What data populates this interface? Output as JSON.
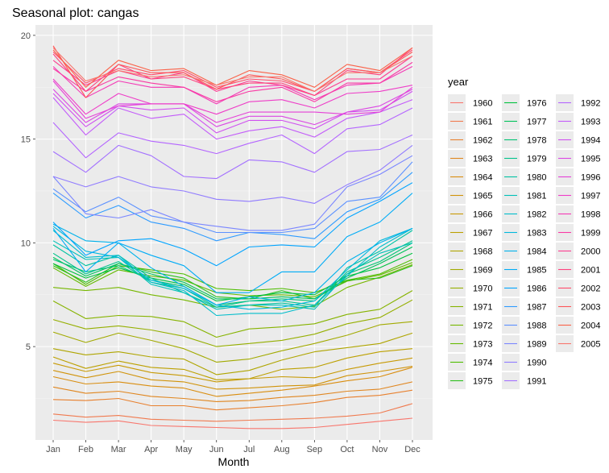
{
  "chart_data": {
    "type": "line",
    "title": "Seasonal plot: cangas",
    "xlabel": "Month",
    "ylabel": "",
    "categories": [
      "Jan",
      "Feb",
      "Mar",
      "Apr",
      "May",
      "Jun",
      "Jul",
      "Aug",
      "Sep",
      "Oct",
      "Nov",
      "Dec"
    ],
    "yticks": [
      5,
      10,
      15,
      20
    ],
    "ylim": [
      0.5,
      20.5
    ],
    "grid": true,
    "legend_title": "year",
    "legend_placement": "right",
    "background": "#ebebeb",
    "series": [
      {
        "name": "1960",
        "color": "#F8766D",
        "values": [
          1.45,
          1.35,
          1.42,
          1.2,
          1.15,
          1.1,
          1.05,
          1.05,
          1.1,
          1.25,
          1.4,
          1.55
        ]
      },
      {
        "name": "1961",
        "color": "#F07A4F",
        "values": [
          1.75,
          1.6,
          1.68,
          1.5,
          1.45,
          1.4,
          1.45,
          1.5,
          1.55,
          1.65,
          1.8,
          2.25
        ]
      },
      {
        "name": "1962",
        "color": "#E8802E",
        "values": [
          2.45,
          2.4,
          2.5,
          2.15,
          2.15,
          1.95,
          2.05,
          2.15,
          2.3,
          2.55,
          2.65,
          2.9
        ]
      },
      {
        "name": "1963",
        "color": "#E0861F",
        "values": [
          3.05,
          2.75,
          2.85,
          2.6,
          2.5,
          2.35,
          2.4,
          2.55,
          2.65,
          2.85,
          2.95,
          3.3
        ]
      },
      {
        "name": "1964",
        "color": "#D98D0F",
        "values": [
          3.55,
          3.2,
          3.3,
          3.1,
          3.0,
          2.6,
          2.75,
          2.9,
          3.1,
          3.35,
          3.55,
          4.0
        ]
      },
      {
        "name": "1965",
        "color": "#D0930A",
        "values": [
          3.85,
          3.5,
          3.8,
          3.4,
          3.3,
          2.95,
          3.0,
          3.1,
          3.15,
          3.6,
          3.8,
          4.05
        ]
      },
      {
        "name": "1966",
        "color": "#C79A05",
        "values": [
          4.2,
          3.8,
          4.1,
          3.75,
          3.6,
          3.3,
          3.45,
          3.55,
          3.5,
          3.9,
          4.2,
          4.45
        ]
      },
      {
        "name": "1967",
        "color": "#BCA000",
        "values": [
          4.5,
          3.95,
          4.3,
          4.0,
          3.9,
          3.4,
          3.45,
          3.9,
          4.0,
          4.45,
          4.75,
          4.9
        ]
      },
      {
        "name": "1968",
        "color": "#AFA500",
        "values": [
          4.9,
          4.6,
          4.75,
          4.5,
          4.4,
          3.65,
          3.85,
          4.35,
          4.75,
          4.95,
          5.15,
          5.65
        ]
      },
      {
        "name": "1969",
        "color": "#A2AA00",
        "values": [
          5.7,
          5.2,
          5.65,
          5.3,
          4.9,
          4.25,
          4.4,
          4.8,
          5.15,
          5.55,
          6.05,
          6.2
        ]
      },
      {
        "name": "1970",
        "color": "#95AF00",
        "values": [
          6.3,
          5.85,
          6.0,
          5.8,
          5.5,
          5.0,
          5.15,
          5.3,
          5.6,
          6.1,
          6.4,
          7.25
        ]
      },
      {
        "name": "1971",
        "color": "#86B300",
        "values": [
          7.2,
          6.35,
          6.5,
          6.45,
          6.2,
          5.45,
          5.85,
          5.95,
          6.1,
          6.55,
          6.8,
          7.7
        ]
      },
      {
        "name": "1972",
        "color": "#76B700",
        "values": [
          7.85,
          7.7,
          7.85,
          7.5,
          7.25,
          6.9,
          7.0,
          6.8,
          6.95,
          7.85,
          8.35,
          8.95
        ]
      },
      {
        "name": "1973",
        "color": "#64BA00",
        "values": [
          8.8,
          7.9,
          8.7,
          8.4,
          8.2,
          7.6,
          7.45,
          7.5,
          7.4,
          8.15,
          8.45,
          9.05
        ]
      },
      {
        "name": "1974",
        "color": "#4EBD00",
        "values": [
          9.0,
          8.0,
          8.9,
          8.7,
          8.5,
          7.8,
          7.7,
          7.8,
          7.6,
          8.2,
          8.5,
          9.2
        ]
      },
      {
        "name": "1975",
        "color": "#2BBF1C",
        "values": [
          8.9,
          8.1,
          9.0,
          8.6,
          8.3,
          7.4,
          7.3,
          7.7,
          7.3,
          8.2,
          8.3,
          8.9
        ]
      },
      {
        "name": "1976",
        "color": "#00C13E",
        "values": [
          9.0,
          8.3,
          8.8,
          8.3,
          8.0,
          7.2,
          7.4,
          7.6,
          7.5,
          8.4,
          8.8,
          9.5
        ]
      },
      {
        "name": "1977",
        "color": "#00C25A",
        "values": [
          9.3,
          8.4,
          9.0,
          8.5,
          8.1,
          7.3,
          7.3,
          7.4,
          7.3,
          8.3,
          9.0,
          9.8
        ]
      },
      {
        "name": "1978",
        "color": "#00C374",
        "values": [
          9.2,
          8.6,
          8.9,
          8.2,
          7.9,
          7.0,
          7.2,
          7.3,
          7.2,
          8.5,
          9.1,
          10.0
        ]
      },
      {
        "name": "1979",
        "color": "#00C38C",
        "values": [
          9.5,
          8.5,
          9.1,
          8.1,
          7.8,
          6.9,
          7.2,
          7.2,
          7.0,
          8.6,
          9.3,
          10.1
        ]
      },
      {
        "name": "1980",
        "color": "#00C2A2",
        "values": [
          9.9,
          8.9,
          9.4,
          8.3,
          7.6,
          6.9,
          7.0,
          7.1,
          6.9,
          8.8,
          9.6,
          10.6
        ]
      },
      {
        "name": "1981",
        "color": "#00C0B8",
        "values": [
          10.1,
          9.2,
          9.3,
          8.0,
          7.6,
          6.8,
          7.0,
          7.0,
          6.8,
          8.5,
          9.5,
          10.0
        ]
      },
      {
        "name": "1982",
        "color": "#00BDCB",
        "values": [
          10.6,
          9.3,
          9.4,
          8.1,
          7.7,
          6.5,
          6.6,
          6.6,
          7.0,
          8.4,
          9.8,
          10.7
        ]
      },
      {
        "name": "1983",
        "color": "#00B8DC",
        "values": [
          10.8,
          9.6,
          9.3,
          8.2,
          7.8,
          7.0,
          6.8,
          6.9,
          7.2,
          8.7,
          10.1,
          10.7
        ]
      },
      {
        "name": "1984",
        "color": "#00B2EB",
        "values": [
          10.9,
          10.1,
          10.0,
          8.8,
          7.9,
          7.0,
          7.4,
          7.2,
          7.6,
          9.1,
          10.0,
          10.7
        ]
      },
      {
        "name": "1985",
        "color": "#00ACF6",
        "values": [
          10.7,
          8.6,
          10.0,
          9.4,
          8.9,
          7.6,
          7.6,
          8.6,
          8.6,
          10.3,
          11.0,
          12.4
        ]
      },
      {
        "name": "1986",
        "color": "#00A4FF",
        "values": [
          11.0,
          9.4,
          10.1,
          10.2,
          9.7,
          8.9,
          9.8,
          9.9,
          9.8,
          11.2,
          12.0,
          12.9
        ]
      },
      {
        "name": "1987",
        "color": "#2E9BFF",
        "values": [
          12.4,
          11.2,
          11.8,
          11.0,
          10.7,
          10.1,
          10.5,
          10.4,
          10.2,
          11.5,
          12.1,
          13.4
        ]
      },
      {
        "name": "1988",
        "color": "#5C91FF",
        "values": [
          12.6,
          11.5,
          12.2,
          11.3,
          11.0,
          10.5,
          10.5,
          10.5,
          10.7,
          12.0,
          12.2,
          13.9
        ]
      },
      {
        "name": "1989",
        "color": "#7A86FF",
        "values": [
          13.2,
          11.4,
          11.2,
          11.6,
          11.0,
          10.8,
          10.6,
          10.6,
          10.9,
          12.7,
          13.3,
          14.2
        ]
      },
      {
        "name": "1990",
        "color": "#907BFF",
        "values": [
          13.2,
          12.7,
          13.2,
          12.7,
          12.5,
          12.1,
          12.0,
          12.2,
          11.9,
          12.8,
          13.5,
          14.7
        ]
      },
      {
        "name": "1991",
        "color": "#A370FF",
        "values": [
          14.4,
          13.4,
          14.7,
          14.2,
          13.2,
          13.1,
          14.0,
          13.9,
          13.4,
          14.4,
          14.5,
          15.2
        ]
      },
      {
        "name": "1992",
        "color": "#B465FF",
        "values": [
          15.8,
          14.1,
          15.3,
          14.9,
          14.7,
          14.3,
          14.8,
          15.2,
          14.3,
          15.5,
          15.7,
          16.5
        ]
      },
      {
        "name": "1993",
        "color": "#C35BFA",
        "values": [
          17.0,
          15.2,
          16.5,
          16.0,
          16.2,
          15.0,
          15.4,
          15.6,
          15.1,
          16.0,
          16.3,
          16.9
        ]
      },
      {
        "name": "1994",
        "color": "#D050F0",
        "values": [
          17.2,
          15.6,
          16.6,
          16.4,
          16.5,
          15.3,
          15.9,
          15.9,
          15.5,
          16.3,
          16.4,
          17.3
        ]
      },
      {
        "name": "1995",
        "color": "#DB47E4",
        "values": [
          17.4,
          15.8,
          16.7,
          16.7,
          16.7,
          15.6,
          16.1,
          16.1,
          15.7,
          16.3,
          16.6,
          17.4
        ]
      },
      {
        "name": "1996",
        "color": "#E541D7",
        "values": [
          17.8,
          16.0,
          16.6,
          16.7,
          16.7,
          15.8,
          16.3,
          16.3,
          16.3,
          16.2,
          16.3,
          17.5
        ]
      },
      {
        "name": "1997",
        "color": "#EE3DC8",
        "values": [
          17.9,
          16.2,
          17.2,
          16.7,
          16.7,
          16.2,
          16.8,
          16.9,
          16.5,
          17.2,
          17.3,
          17.6
        ]
      },
      {
        "name": "1998",
        "color": "#F43AB6",
        "values": [
          18.5,
          17.0,
          17.8,
          17.5,
          17.5,
          16.7,
          17.5,
          17.6,
          16.9,
          17.6,
          17.7,
          18.5
        ]
      },
      {
        "name": "1999",
        "color": "#F93AA4",
        "values": [
          18.4,
          17.3,
          18.0,
          17.7,
          17.5,
          16.8,
          17.3,
          17.5,
          16.8,
          17.7,
          17.7,
          18.7
        ]
      },
      {
        "name": "2000",
        "color": "#FC3D91",
        "values": [
          18.8,
          17.6,
          18.3,
          17.9,
          18.2,
          17.3,
          17.8,
          17.6,
          17.1,
          17.9,
          17.9,
          19.0
        ]
      },
      {
        "name": "2001",
        "color": "#FE427D",
        "values": [
          19.1,
          17.3,
          18.6,
          17.9,
          18.0,
          17.4,
          17.7,
          17.7,
          17.1,
          18.3,
          18.1,
          19.4
        ]
      },
      {
        "name": "2002",
        "color": "#FF4A6B",
        "values": [
          19.2,
          17.7,
          18.4,
          18.1,
          18.3,
          17.5,
          17.9,
          17.8,
          17.3,
          18.4,
          18.2,
          19.3
        ]
      },
      {
        "name": "2003",
        "color": "#FD5659",
        "values": [
          19.5,
          17.0,
          18.6,
          18.2,
          18.2,
          17.4,
          18.1,
          17.9,
          17.3,
          18.4,
          18.2,
          19.2
        ]
      },
      {
        "name": "2004",
        "color": "#FA6249",
        "values": [
          19.3,
          17.5,
          18.8,
          18.3,
          18.4,
          17.6,
          18.3,
          18.1,
          17.5,
          18.6,
          18.3,
          19.4
        ]
      },
      {
        "name": "2005",
        "color": "#F8766D",
        "values": [
          19.4,
          17.8,
          18.3,
          18.0,
          18.1,
          17.6,
          18.0,
          18.0,
          17.3,
          18.2,
          18.2,
          19.0
        ]
      }
    ]
  }
}
